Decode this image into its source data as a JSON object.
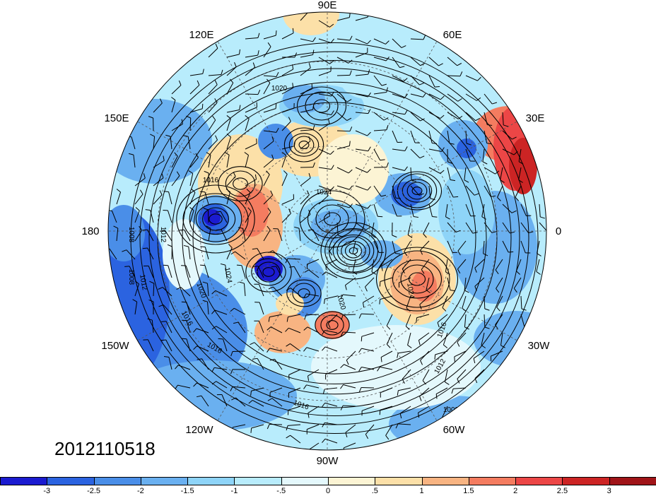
{
  "map": {
    "date": "2012110518",
    "longitude_labels": [
      "90E",
      "60E",
      "30E",
      "0",
      "30W",
      "60W",
      "90W",
      "120W",
      "150W",
      "180",
      "150E",
      "120E"
    ],
    "contour_labels": [
      "1020",
      "1016",
      "1012",
      "1008",
      "1024",
      "1020",
      "1024",
      "1020",
      "1016",
      "1016",
      "1016",
      "1012",
      "1016",
      "1012",
      "1008",
      "1008",
      "1024"
    ]
  },
  "colorbar": {
    "colors": [
      "#1b1bd0",
      "#2b63e0",
      "#4a8ee8",
      "#6ab0f0",
      "#8ed4f8",
      "#b8ecfc",
      "#e4f8fc",
      "#fcf4d4",
      "#fce0a8",
      "#f8b482",
      "#f47c60",
      "#ec4646",
      "#cc2424",
      "#a01418"
    ],
    "labels": [
      "-3",
      "-2.5",
      "-2",
      "-1.5",
      "-1",
      "-.5",
      "0",
      ".5",
      "1",
      "1.5",
      "2",
      "2.5",
      "3"
    ]
  },
  "chart_data": {
    "type": "heatmap",
    "projection": "polar-stereographic",
    "color_levels": [
      -3,
      -2.5,
      -2,
      -1.5,
      -1,
      -0.5,
      0,
      0.5,
      1,
      1.5,
      2,
      2.5,
      3
    ],
    "contour_values_shown": [
      1008,
      1012,
      1016,
      1020,
      1024
    ],
    "longitude_ticks": [
      "90E",
      "60E",
      "30E",
      "0",
      "30W",
      "60W",
      "90W",
      "120W",
      "150W",
      "180",
      "150E",
      "120E"
    ],
    "legend": "bottom"
  }
}
